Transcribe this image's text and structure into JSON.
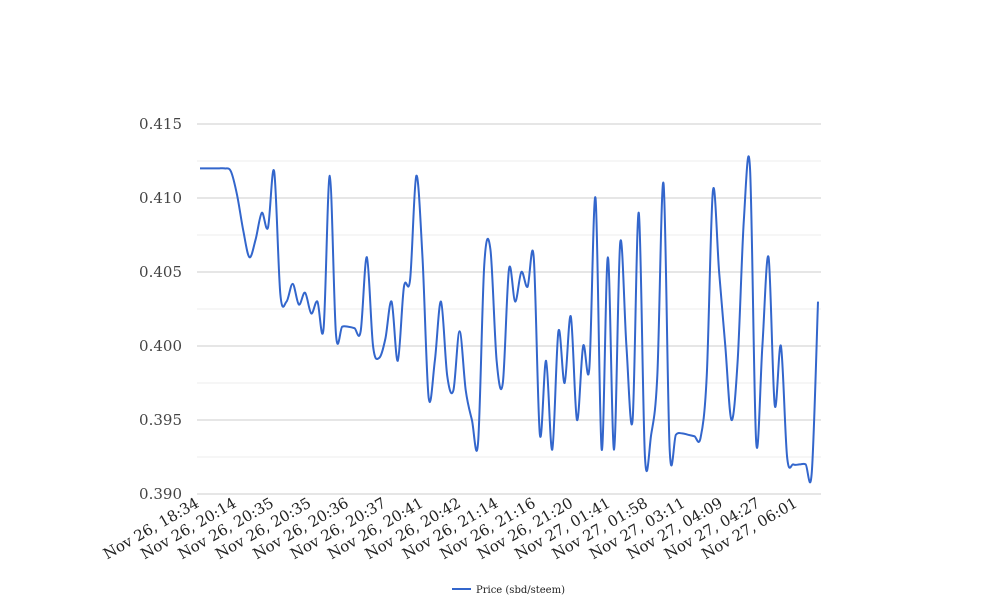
{
  "chart_data": {
    "type": "line",
    "title": "",
    "xlabel": "",
    "ylabel": "",
    "ylim": [
      0.39,
      0.415
    ],
    "y_ticks": [
      "0.390",
      "0.395",
      "0.400",
      "0.405",
      "0.410",
      "0.415"
    ],
    "y_tick_values": [
      0.39,
      0.395,
      0.4,
      0.405,
      0.41,
      0.415
    ],
    "grid": true,
    "legend_position": "bottom",
    "x_tick_labels": [
      "Nov 26, 18:34",
      "Nov 26, 20:14",
      "Nov 26, 20:35",
      "Nov 26, 20:35",
      "Nov 26, 20:36",
      "Nov 26, 20:37",
      "Nov 26, 20:41",
      "Nov 26, 20:42",
      "Nov 26, 21:14",
      "Nov 26, 21:16",
      "Nov 26, 21:20",
      "Nov 27, 01:41",
      "Nov 27, 01:58",
      "Nov 27, 03:11",
      "Nov 27, 04:09",
      "Nov 27, 04:27",
      "Nov 27, 06:01"
    ],
    "series": [
      {
        "name": "Price (sbd/steem)",
        "color": "#3366cc",
        "values": [
          0.412,
          0.412,
          0.412,
          0.412,
          0.412,
          0.4118,
          0.4102,
          0.4078,
          0.406,
          0.4072,
          0.409,
          0.408,
          0.4118,
          0.4035,
          0.403,
          0.4042,
          0.4028,
          0.4036,
          0.4022,
          0.403,
          0.4012,
          0.4115,
          0.4008,
          0.4013,
          0.4013,
          0.4012,
          0.401,
          0.406,
          0.4,
          0.3992,
          0.4005,
          0.403,
          0.399,
          0.404,
          0.4045,
          0.4115,
          0.406,
          0.3965,
          0.399,
          0.403,
          0.398,
          0.397,
          0.401,
          0.397,
          0.395,
          0.3935,
          0.4055,
          0.4065,
          0.399,
          0.3975,
          0.4052,
          0.403,
          0.405,
          0.404,
          0.406,
          0.394,
          0.399,
          0.393,
          0.401,
          0.3975,
          0.402,
          0.395,
          0.4,
          0.3985,
          0.41,
          0.393,
          0.406,
          0.393,
          0.407,
          0.4,
          0.395,
          0.409,
          0.3925,
          0.394,
          0.398,
          0.411,
          0.393,
          0.394,
          0.3941,
          0.394,
          0.3939,
          0.3938,
          0.398,
          0.4105,
          0.405,
          0.4,
          0.395,
          0.399,
          0.4085,
          0.412,
          0.3935,
          0.4,
          0.406,
          0.396,
          0.4,
          0.3925,
          0.392,
          0.392,
          0.392,
          0.3915,
          0.403
        ]
      }
    ]
  }
}
